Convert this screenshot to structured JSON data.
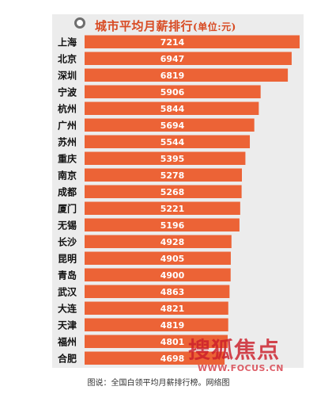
{
  "title": {
    "main": "城市平均月薪排行",
    "unit": "(单位:元)"
  },
  "caption": "图说：全国白领平均月薪排行榜。网络图",
  "watermark": {
    "text": "搜狐焦点",
    "url": "WWW.FOCUS.CN"
  },
  "colors": {
    "bar": "#ec6336",
    "accent": "#d84a22",
    "panel": "#ececec",
    "label": "#111111",
    "value": "#ffffff"
  },
  "chart_data": {
    "type": "bar",
    "orientation": "horizontal",
    "title": "城市平均月薪排行",
    "unit": "元",
    "categories": [
      "上海",
      "北京",
      "深圳",
      "宁波",
      "杭州",
      "广州",
      "苏州",
      "重庆",
      "南京",
      "成都",
      "厦门",
      "无锡",
      "长沙",
      "昆明",
      "青岛",
      "武汉",
      "大连",
      "天津",
      "福州",
      "合肥"
    ],
    "values": [
      7214,
      6947,
      6819,
      5906,
      5844,
      5694,
      5544,
      5395,
      5278,
      5268,
      5221,
      5196,
      4928,
      4905,
      4900,
      4863,
      4821,
      4819,
      4801,
      4698
    ],
    "data_labels": [
      "7214",
      "6947",
      "6819",
      "5906",
      "5844",
      "5694",
      "5544",
      "5395",
      "5278",
      "5268",
      "5221",
      "5196",
      "4928",
      "4905",
      "4900",
      "4863",
      "4821",
      "4819",
      "4801",
      "4698"
    ],
    "grid": false,
    "legend": "none"
  }
}
